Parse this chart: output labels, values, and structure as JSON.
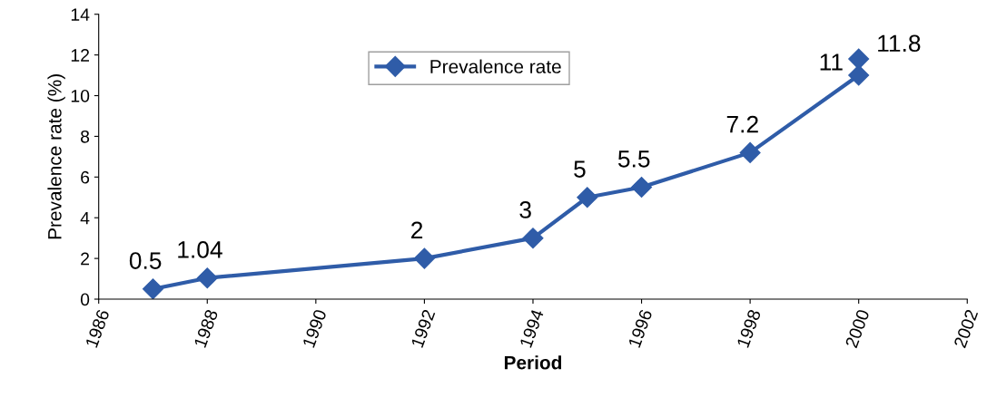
{
  "chart_data": {
    "type": "line",
    "xlabel": "Period",
    "ylabel": "Prevalence rate (%)",
    "x": [
      1987,
      1988,
      1992,
      1994,
      1995,
      1996,
      1998,
      2000,
      2000
    ],
    "series": [
      {
        "name": "Prevalence rate",
        "color": "#2f5ca8",
        "values": [
          0.5,
          1.04,
          2,
          3,
          5,
          5.5,
          7.2,
          11,
          11.8
        ]
      }
    ],
    "xlim": [
      1986,
      2002
    ],
    "xticks": [
      1986,
      1988,
      1990,
      1992,
      1994,
      1996,
      1998,
      2000,
      2002
    ],
    "ylim": [
      0,
      14
    ],
    "yticks": [
      0,
      2,
      4,
      6,
      8,
      10,
      12,
      14
    ],
    "data_labels": true,
    "marker": "diamond",
    "line_style": "solid",
    "grid": false,
    "legend": "top"
  }
}
